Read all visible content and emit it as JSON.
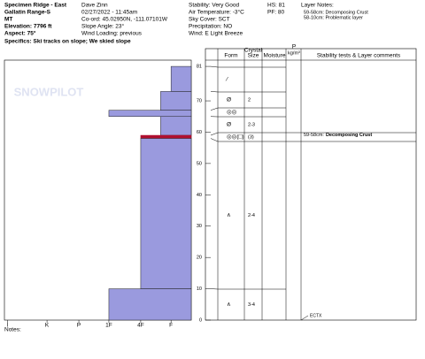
{
  "header": {
    "site": [
      "Specimen Ridge - East",
      "Gallatin Range-S",
      "MT",
      "Elevation: 7796 ft",
      "Aspect: 75°"
    ],
    "observer": [
      "Dave Zinn",
      "02/27/2022 - 11:45am",
      "Co-ord: 45.02950N, -111.07101W",
      "Slope Angle: 23°",
      "Wind Loading: previous"
    ],
    "weather": [
      "Stability: Very Good",
      "Air Temperature: -3°C",
      "Sky Cover: SCT",
      "Precipitation: NO",
      "Wind: E Light Breeze"
    ],
    "snow": [
      "HS: 81",
      "PF: 80"
    ],
    "layer_notes_title": "Layer Notes:",
    "layer_notes": [
      "59-58cm: Decomposing Crust",
      "58-10cm: Problematic layer"
    ],
    "specifics": "Specifics: Ski tracks on slope; We skied slope"
  },
  "chart_data": {
    "type": "snowprofile",
    "watermark": "SNOWPILOT",
    "ylim": [
      0,
      83
    ],
    "yticks": [
      0,
      10,
      20,
      30,
      40,
      50,
      60,
      70,
      81
    ],
    "xlim": [
      0,
      6.1
    ],
    "xticks": [
      {
        "value": 6.0,
        "label": "I"
      },
      {
        "value": 4.71,
        "label": "K"
      },
      {
        "value": 3.67,
        "label": "P"
      },
      {
        "value": 2.69,
        "label": "1F"
      },
      {
        "value": 1.65,
        "label": "4F"
      },
      {
        "value": 0.66,
        "label": "F"
      }
    ],
    "color": "#9a9ade",
    "layers": [
      {
        "top": 81,
        "bottom": 73,
        "hardness": 0.66
      },
      {
        "top": 73,
        "bottom": 67,
        "hardness": 1.0
      },
      {
        "top": 67,
        "bottom": 65,
        "hardness": 2.69
      },
      {
        "top": 65,
        "bottom": 59,
        "hardness": 1.0
      },
      {
        "top": 59,
        "bottom": 58,
        "hardness": 1.65,
        "color": "#b01030"
      },
      {
        "top": 58,
        "bottom": 10,
        "hardness": 1.65
      },
      {
        "top": 10,
        "bottom": 0,
        "hardness": 2.69
      }
    ],
    "columns": {
      "form": "Form",
      "crystal": "Crystal",
      "size": "Size",
      "moisture": "Moisture",
      "p": "P",
      "density": "kg/m³",
      "stability": "Stability tests & Layer comments"
    },
    "rows": [
      {
        "form": "⁄"
      },
      {
        "form": "Ø",
        "size": "2"
      },
      {
        "form": "◎◎"
      },
      {
        "form": "Ø",
        "size": "2-3"
      },
      {
        "form": "◎◎(□)",
        "size": "(3)",
        "comment_depth": "59-58cm:",
        "comment": "Decomposing Crust"
      },
      {
        "form": "∧",
        "size": "2-4"
      },
      {
        "form": "∧",
        "size": "3-4"
      }
    ],
    "test": "ECTX"
  },
  "notes": "Notes:"
}
